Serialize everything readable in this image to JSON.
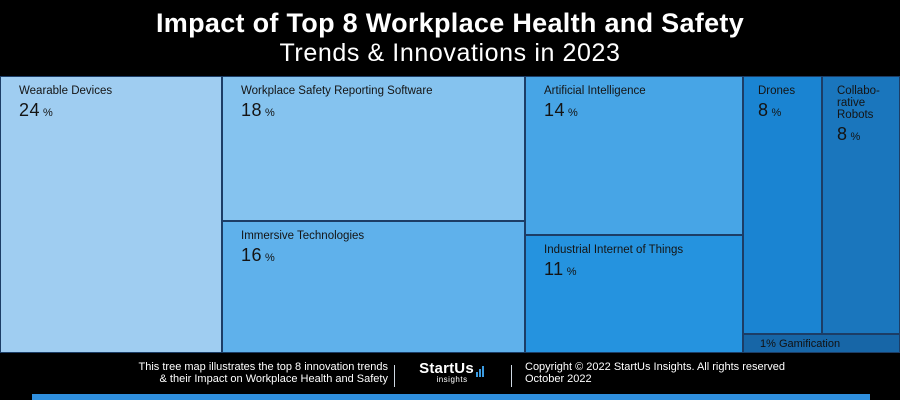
{
  "header": {
    "title_line1": "Impact of Top 8 Workplace Health and Safety",
    "title_line2": "Trends & Innovations in 2023"
  },
  "chart_data": {
    "type": "treemap",
    "unit": "%",
    "items": [
      {
        "label": "Wearable Devices",
        "value": 24,
        "color": "#9fcdf1"
      },
      {
        "label": "Workplace Safety Reporting Software",
        "value": 18,
        "color": "#85c3ef"
      },
      {
        "label": "Immersive Technologies",
        "value": 16,
        "color": "#5fb1eb"
      },
      {
        "label": "Artificial Intelligence",
        "value": 14,
        "color": "#47a5e6"
      },
      {
        "label": "Industrial Internet of Things",
        "value": 11,
        "color": "#2593df"
      },
      {
        "label": "Drones",
        "value": 8,
        "color": "#1a84d2"
      },
      {
        "label": "Collabo-\nrative\nRobots",
        "value": 8,
        "color": "#1a76bd"
      },
      {
        "label": "Gamification",
        "value": 1,
        "color": "#1766a7"
      }
    ]
  },
  "footer": {
    "caption_line1": "This tree map illustrates the top 8 innovation trends",
    "caption_line2": "& their Impact on Workplace Health and Safety",
    "brand_name": "StartUs",
    "brand_sub": "insights",
    "copyright_line1": "Copyright © 2022 StartUs Insights. All rights reserved",
    "copyright_line2": "October 2022"
  }
}
